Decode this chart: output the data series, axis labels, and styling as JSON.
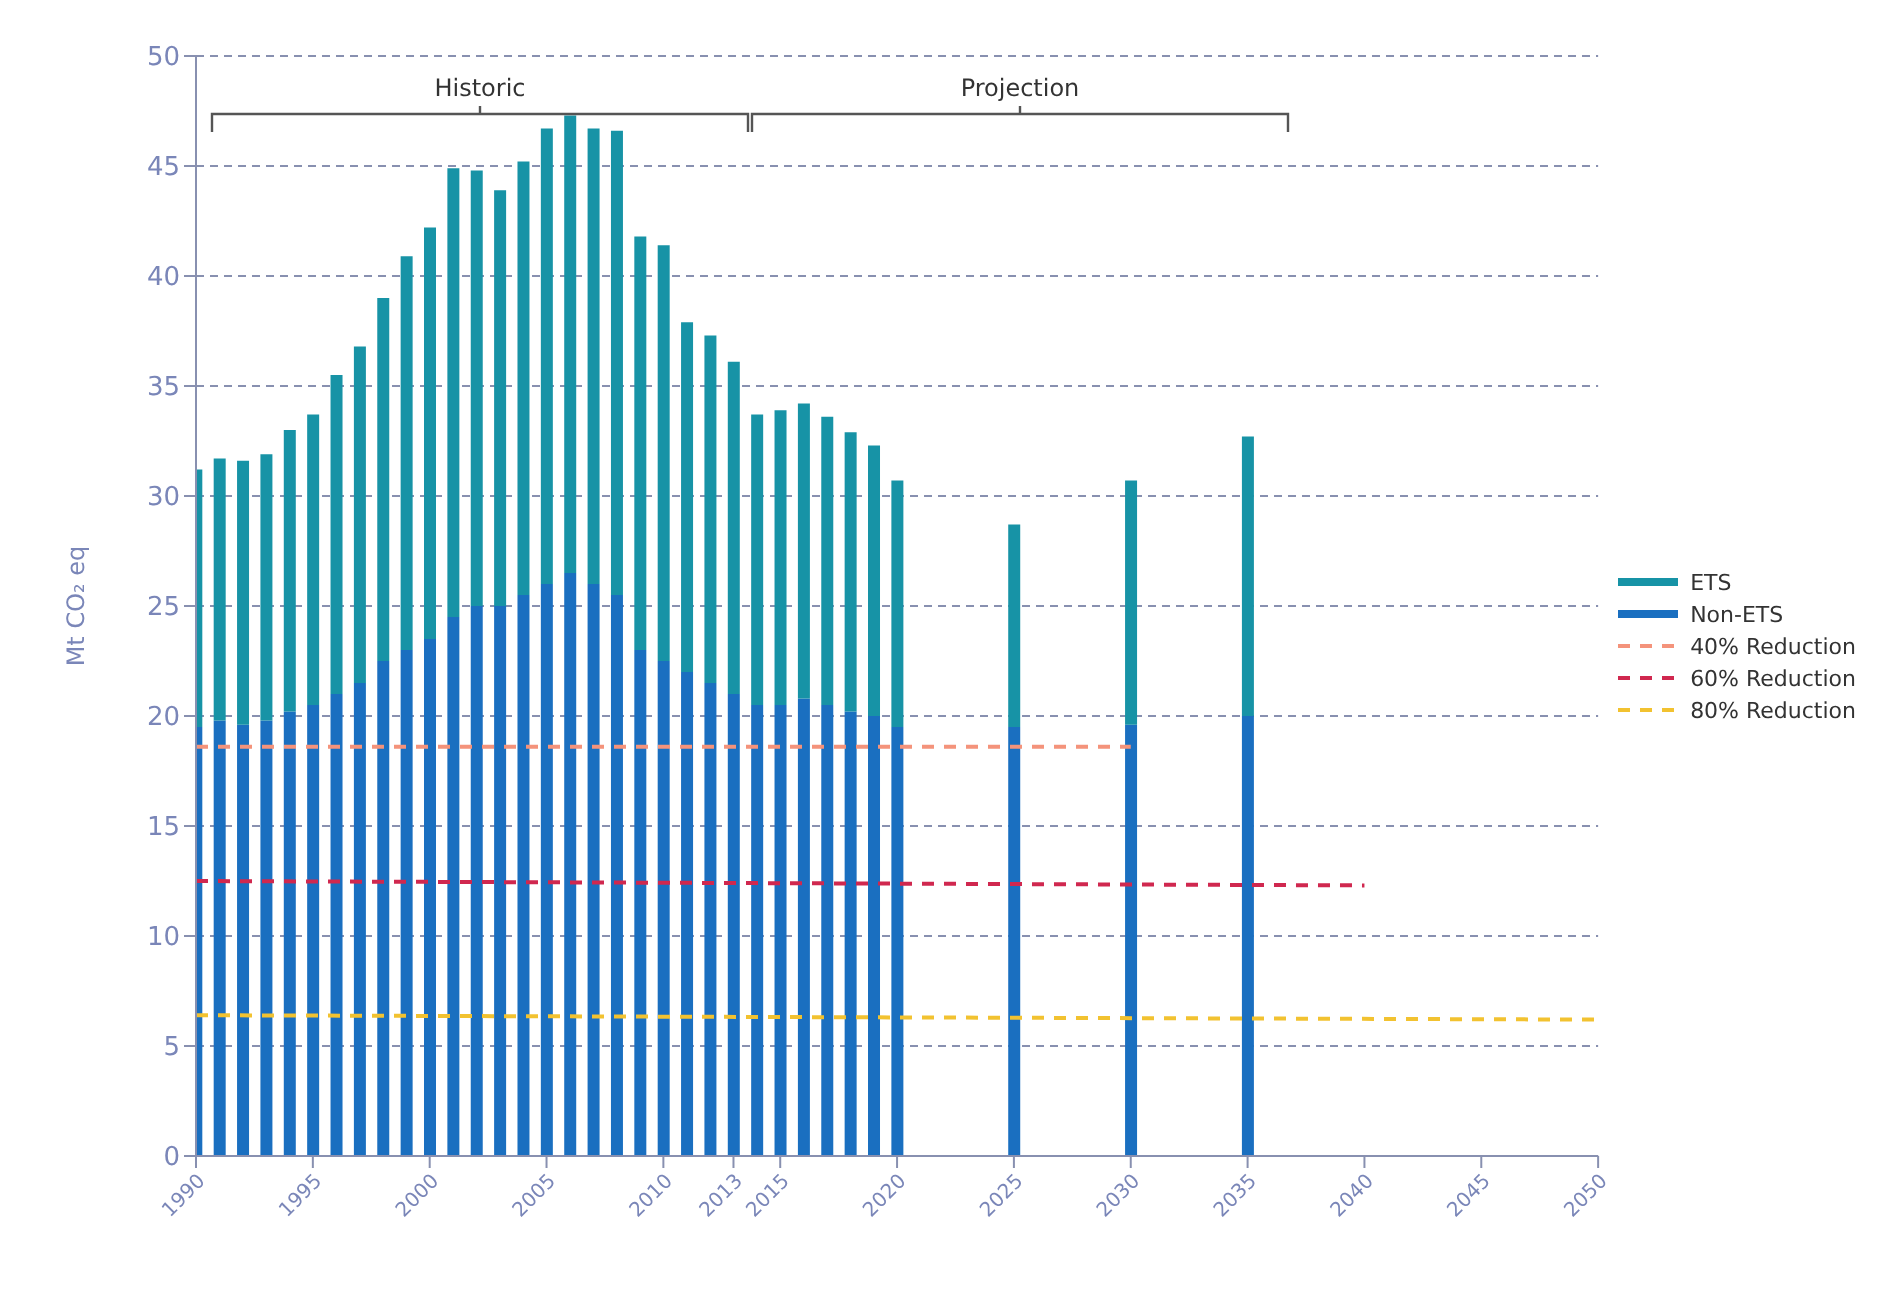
{
  "chart_data": {
    "type": "bar",
    "stacked": true,
    "ylabel": "Mt CO₂ eq",
    "x": [
      1990,
      1991,
      1992,
      1993,
      1994,
      1995,
      1996,
      1997,
      1998,
      1999,
      2000,
      2001,
      2002,
      2003,
      2004,
      2005,
      2006,
      2007,
      2008,
      2009,
      2010,
      2011,
      2012,
      2013,
      2014,
      2015,
      2016,
      2017,
      2018,
      2019,
      2020,
      2025,
      2030,
      2035
    ],
    "series": [
      {
        "name": "Non-ETS",
        "color": "#1a6fc0",
        "values": [
          19.5,
          19.8,
          19.6,
          19.8,
          20.2,
          20.5,
          21,
          21.5,
          22.5,
          23,
          23.5,
          24.5,
          25,
          25,
          25.5,
          26,
          26.5,
          26,
          25.5,
          23,
          22.5,
          22,
          21.5,
          21,
          20.5,
          20.5,
          20.8,
          20.5,
          20.2,
          20,
          19.5,
          19.5,
          19.6,
          20
        ]
      },
      {
        "name": "ETS",
        "color": "#1793a6",
        "values": [
          11.7,
          11.9,
          12.0,
          12.1,
          12.8,
          13.2,
          14.5,
          15.3,
          16.5,
          17.9,
          18.7,
          20.4,
          19.8,
          18.9,
          19.7,
          20.7,
          20.8,
          20.7,
          21.1,
          18.8,
          18.9,
          15.9,
          15.8,
          15.1,
          13.2,
          13.4,
          13.4,
          13.1,
          12.7,
          12.3,
          11.2,
          9.2,
          11.1,
          12.7
        ]
      },
      {
        "name": "40% Reduction",
        "type": "line",
        "line_style": "dashed",
        "color": "#f4937b",
        "x": [
          1990,
          2030
        ],
        "values": [
          18.6,
          18.6
        ]
      },
      {
        "name": "60% Reduction",
        "type": "line",
        "line_style": "dashed",
        "color": "#d0284f",
        "x": [
          1990,
          2040
        ],
        "values": [
          12.5,
          12.3
        ]
      },
      {
        "name": "80% Reduction",
        "type": "line",
        "line_style": "dashed",
        "color": "#f2c230",
        "x": [
          1990,
          2050
        ],
        "values": [
          6.4,
          6.2
        ]
      }
    ],
    "annotations": [
      "Historic",
      "Projection"
    ],
    "xlim": [
      1990,
      2050
    ],
    "xticks": [
      1990,
      1995,
      2000,
      2005,
      2010,
      2013,
      2015,
      2020,
      2025,
      2030,
      2035,
      2040,
      2045,
      2050
    ],
    "ylim": [
      0,
      50
    ],
    "yticks": [
      0,
      5,
      10,
      15,
      20,
      25,
      30,
      35,
      40,
      45,
      50
    ],
    "grid": "y",
    "legend": "right",
    "marker": "none"
  }
}
